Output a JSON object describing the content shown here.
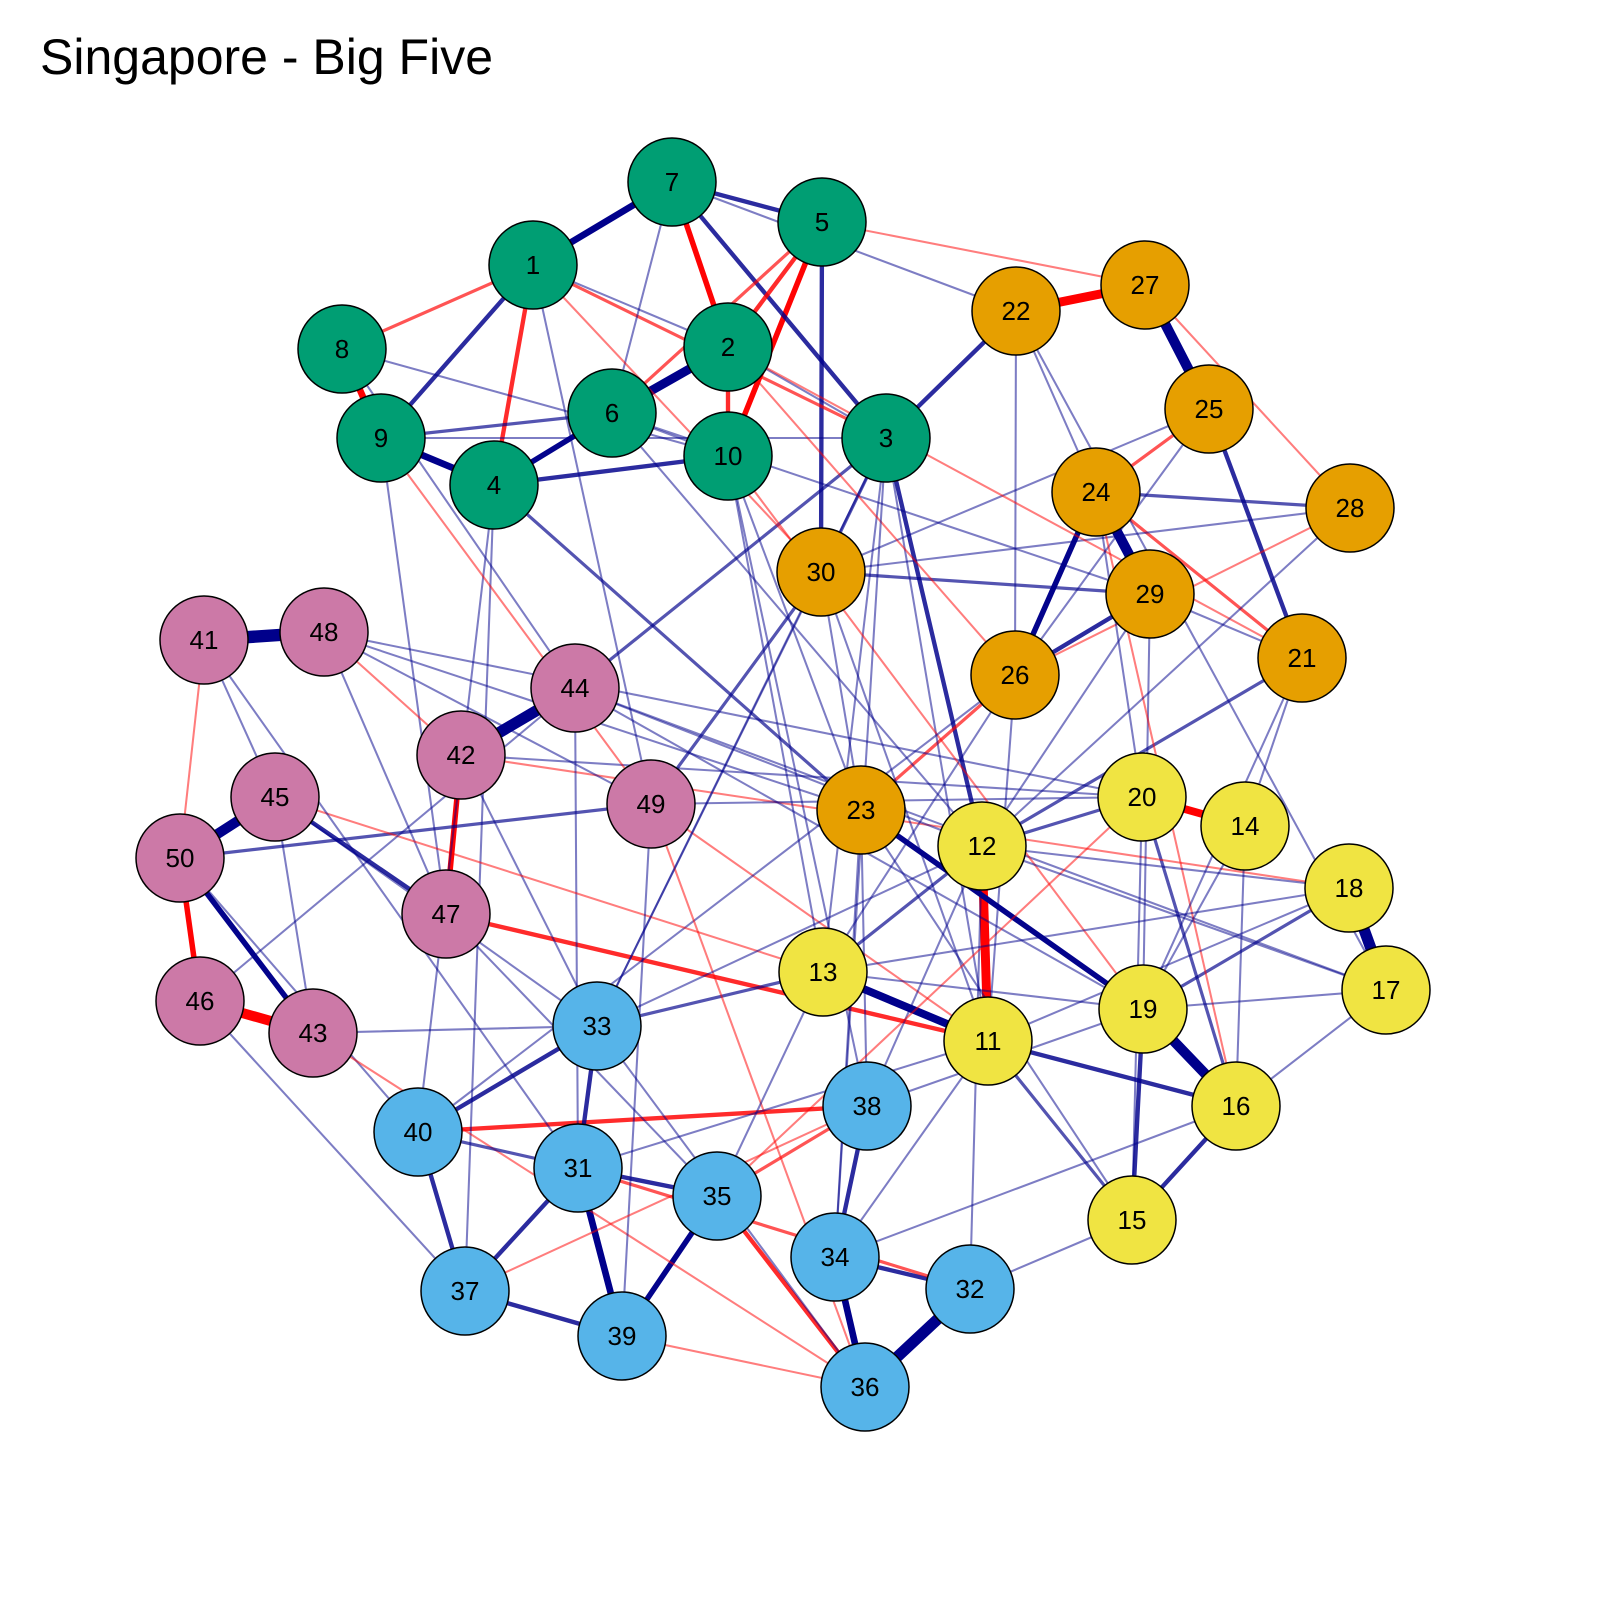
{
  "title": "Singapore - Big Five",
  "colors": {
    "positive": "#00008B",
    "negative": "#FF0000",
    "node_stroke": "#000000",
    "groups": {
      "A": "#009E73",
      "B": "#E69F00",
      "C": "#F0E442",
      "D": "#56B4E9",
      "E": "#CC79A7"
    }
  },
  "nodes": [
    {
      "id": 1,
      "label": "1",
      "group": "A"
    },
    {
      "id": 2,
      "label": "2",
      "group": "A"
    },
    {
      "id": 3,
      "label": "3",
      "group": "A"
    },
    {
      "id": 4,
      "label": "4",
      "group": "A"
    },
    {
      "id": 5,
      "label": "5",
      "group": "A"
    },
    {
      "id": 6,
      "label": "6",
      "group": "A"
    },
    {
      "id": 7,
      "label": "7",
      "group": "A"
    },
    {
      "id": 8,
      "label": "8",
      "group": "A"
    },
    {
      "id": 9,
      "label": "9",
      "group": "A"
    },
    {
      "id": 10,
      "label": "10",
      "group": "A"
    },
    {
      "id": 11,
      "label": "11",
      "group": "C"
    },
    {
      "id": 12,
      "label": "12",
      "group": "C"
    },
    {
      "id": 13,
      "label": "13",
      "group": "C"
    },
    {
      "id": 14,
      "label": "14",
      "group": "C"
    },
    {
      "id": 15,
      "label": "15",
      "group": "C"
    },
    {
      "id": 16,
      "label": "16",
      "group": "C"
    },
    {
      "id": 17,
      "label": "17",
      "group": "C"
    },
    {
      "id": 18,
      "label": "18",
      "group": "C"
    },
    {
      "id": 19,
      "label": "19",
      "group": "C"
    },
    {
      "id": 20,
      "label": "20",
      "group": "C"
    },
    {
      "id": 21,
      "label": "21",
      "group": "B"
    },
    {
      "id": 22,
      "label": "22",
      "group": "B"
    },
    {
      "id": 23,
      "label": "23",
      "group": "B"
    },
    {
      "id": 24,
      "label": "24",
      "group": "B"
    },
    {
      "id": 25,
      "label": "25",
      "group": "B"
    },
    {
      "id": 26,
      "label": "26",
      "group": "B"
    },
    {
      "id": 27,
      "label": "27",
      "group": "B"
    },
    {
      "id": 28,
      "label": "28",
      "group": "B"
    },
    {
      "id": 29,
      "label": "29",
      "group": "B"
    },
    {
      "id": 30,
      "label": "30",
      "group": "B"
    },
    {
      "id": 31,
      "label": "31",
      "group": "D"
    },
    {
      "id": 32,
      "label": "32",
      "group": "D"
    },
    {
      "id": 33,
      "label": "33",
      "group": "D"
    },
    {
      "id": 34,
      "label": "34",
      "group": "D"
    },
    {
      "id": 35,
      "label": "35",
      "group": "D"
    },
    {
      "id": 36,
      "label": "36",
      "group": "D"
    },
    {
      "id": 37,
      "label": "37",
      "group": "D"
    },
    {
      "id": 38,
      "label": "38",
      "group": "D"
    },
    {
      "id": 39,
      "label": "39",
      "group": "D"
    },
    {
      "id": 40,
      "label": "40",
      "group": "D"
    },
    {
      "id": 41,
      "label": "41",
      "group": "E"
    },
    {
      "id": 42,
      "label": "42",
      "group": "E"
    },
    {
      "id": 43,
      "label": "43",
      "group": "E"
    },
    {
      "id": 44,
      "label": "44",
      "group": "E"
    },
    {
      "id": 45,
      "label": "45",
      "group": "E"
    },
    {
      "id": 46,
      "label": "46",
      "group": "E"
    },
    {
      "id": 47,
      "label": "47",
      "group": "E"
    },
    {
      "id": 48,
      "label": "48",
      "group": "E"
    },
    {
      "id": 49,
      "label": "49",
      "group": "E"
    },
    {
      "id": 50,
      "label": "50",
      "group": "E"
    }
  ],
  "edges": [
    {
      "s": 41,
      "t": 48,
      "sign": "pos",
      "w": 10
    },
    {
      "s": 42,
      "t": 44,
      "sign": "pos",
      "w": 9
    },
    {
      "s": 17,
      "t": 18,
      "sign": "pos",
      "w": 9
    },
    {
      "s": 36,
      "t": 32,
      "sign": "pos",
      "w": 9
    },
    {
      "s": 27,
      "t": 25,
      "sign": "pos",
      "w": 8
    },
    {
      "s": 24,
      "t": 29,
      "sign": "pos",
      "w": 8
    },
    {
      "s": 19,
      "t": 16,
      "sign": "pos",
      "w": 8
    },
    {
      "s": 46,
      "t": 43,
      "sign": "neg",
      "w": 8
    },
    {
      "s": 45,
      "t": 50,
      "sign": "pos",
      "w": 8
    },
    {
      "s": 6,
      "t": 2,
      "sign": "pos",
      "w": 7
    },
    {
      "s": 22,
      "t": 27,
      "sign": "neg",
      "w": 7
    },
    {
      "s": 12,
      "t": 11,
      "sign": "neg",
      "w": 7
    },
    {
      "s": 20,
      "t": 14,
      "sign": "neg",
      "w": 6
    },
    {
      "s": 13,
      "t": 11,
      "sign": "pos",
      "w": 6
    },
    {
      "s": 1,
      "t": 7,
      "sign": "pos",
      "w": 5
    },
    {
      "s": 8,
      "t": 9,
      "sign": "neg",
      "w": 5
    },
    {
      "s": 9,
      "t": 4,
      "sign": "pos",
      "w": 5
    },
    {
      "s": 34,
      "t": 36,
      "sign": "pos",
      "w": 5
    },
    {
      "s": 31,
      "t": 39,
      "sign": "pos",
      "w": 5
    },
    {
      "s": 35,
      "t": 39,
      "sign": "pos",
      "w": 4
    },
    {
      "s": 26,
      "t": 24,
      "sign": "pos",
      "w": 4
    },
    {
      "s": 23,
      "t": 19,
      "sign": "pos",
      "w": 4
    },
    {
      "s": 42,
      "t": 47,
      "sign": "neg",
      "w": 4
    },
    {
      "s": 50,
      "t": 46,
      "sign": "neg",
      "w": 4
    },
    {
      "s": 50,
      "t": 43,
      "sign": "pos",
      "w": 4
    },
    {
      "s": 7,
      "t": 2,
      "sign": "neg",
      "w": 4
    },
    {
      "s": 5,
      "t": 10,
      "sign": "neg",
      "w": 4
    },
    {
      "s": 6,
      "t": 4,
      "sign": "pos",
      "w": 4
    },
    {
      "s": 1,
      "t": 4,
      "sign": "neg",
      "w": 3
    },
    {
      "s": 8,
      "t": 1,
      "sign": "neg",
      "w": 2
    },
    {
      "s": 7,
      "t": 3,
      "sign": "pos",
      "w": 3
    },
    {
      "s": 5,
      "t": 30,
      "sign": "pos",
      "w": 3
    },
    {
      "s": 5,
      "t": 2,
      "sign": "neg",
      "w": 3
    },
    {
      "s": 7,
      "t": 5,
      "sign": "pos",
      "w": 3
    },
    {
      "s": 1,
      "t": 9,
      "sign": "pos",
      "w": 3
    },
    {
      "s": 2,
      "t": 10,
      "sign": "neg",
      "w": 3
    },
    {
      "s": 4,
      "t": 10,
      "sign": "pos",
      "w": 3
    },
    {
      "s": 9,
      "t": 6,
      "sign": "pos",
      "w": 2
    },
    {
      "s": 1,
      "t": 3,
      "sign": "neg",
      "w": 2
    },
    {
      "s": 22,
      "t": 3,
      "sign": "pos",
      "w": 3
    },
    {
      "s": 25,
      "t": 21,
      "sign": "pos",
      "w": 3
    },
    {
      "s": 24,
      "t": 28,
      "sign": "pos",
      "w": 2
    },
    {
      "s": 30,
      "t": 29,
      "sign": "pos",
      "w": 2
    },
    {
      "s": 29,
      "t": 26,
      "sign": "pos",
      "w": 3
    },
    {
      "s": 25,
      "t": 24,
      "sign": "neg",
      "w": 2
    },
    {
      "s": 27,
      "t": 28,
      "sign": "neg",
      "w": 1
    },
    {
      "s": 24,
      "t": 21,
      "sign": "neg",
      "w": 2
    },
    {
      "s": 3,
      "t": 12,
      "sign": "pos",
      "w": 3
    },
    {
      "s": 3,
      "t": 30,
      "sign": "pos",
      "w": 2
    },
    {
      "s": 44,
      "t": 3,
      "sign": "pos",
      "w": 2
    },
    {
      "s": 30,
      "t": 49,
      "sign": "pos",
      "w": 2
    },
    {
      "s": 45,
      "t": 47,
      "sign": "pos",
      "w": 3
    },
    {
      "s": 43,
      "t": 45,
      "sign": "pos",
      "w": 1
    },
    {
      "s": 50,
      "t": 49,
      "sign": "pos",
      "w": 2
    },
    {
      "s": 47,
      "t": 11,
      "sign": "neg",
      "w": 3
    },
    {
      "s": 40,
      "t": 38,
      "sign": "neg",
      "w": 3
    },
    {
      "s": 40,
      "t": 33,
      "sign": "pos",
      "w": 3
    },
    {
      "s": 40,
      "t": 37,
      "sign": "pos",
      "w": 3
    },
    {
      "s": 31,
      "t": 37,
      "sign": "pos",
      "w": 3
    },
    {
      "s": 31,
      "t": 35,
      "sign": "pos",
      "w": 3
    },
    {
      "s": 33,
      "t": 31,
      "sign": "pos",
      "w": 3
    },
    {
      "s": 37,
      "t": 39,
      "sign": "pos",
      "w": 3
    },
    {
      "s": 38,
      "t": 34,
      "sign": "pos",
      "w": 3
    },
    {
      "s": 34,
      "t": 32,
      "sign": "pos",
      "w": 3
    },
    {
      "s": 35,
      "t": 36,
      "sign": "neg",
      "w": 3
    },
    {
      "s": 31,
      "t": 32,
      "sign": "neg",
      "w": 2
    },
    {
      "s": 38,
      "t": 35,
      "sign": "neg",
      "w": 2
    },
    {
      "s": 13,
      "t": 33,
      "sign": "pos",
      "w": 2
    },
    {
      "s": 19,
      "t": 15,
      "sign": "pos",
      "w": 3
    },
    {
      "s": 16,
      "t": 15,
      "sign": "pos",
      "w": 3
    },
    {
      "s": 11,
      "t": 16,
      "sign": "pos",
      "w": 3
    },
    {
      "s": 20,
      "t": 12,
      "sign": "pos",
      "w": 2
    },
    {
      "s": 18,
      "t": 19,
      "sign": "pos",
      "w": 2
    },
    {
      "s": 20,
      "t": 16,
      "sign": "pos",
      "w": 2
    },
    {
      "s": 11,
      "t": 15,
      "sign": "pos",
      "w": 2
    },
    {
      "s": 13,
      "t": 12,
      "sign": "pos",
      "w": 2
    },
    {
      "s": 23,
      "t": 26,
      "sign": "neg",
      "w": 2
    },
    {
      "s": 21,
      "t": 12,
      "sign": "pos",
      "w": 2
    },
    {
      "s": 30,
      "t": 23,
      "sign": "pos",
      "w": 1
    },
    {
      "s": 49,
      "t": 11,
      "sign": "neg",
      "w": 1
    },
    {
      "s": 44,
      "t": 17,
      "sign": "pos",
      "w": 1
    },
    {
      "s": 48,
      "t": 20,
      "sign": "pos",
      "w": 1
    },
    {
      "s": 41,
      "t": 45,
      "sign": "pos",
      "w": 1
    },
    {
      "s": 48,
      "t": 47,
      "sign": "pos",
      "w": 1
    },
    {
      "s": 42,
      "t": 18,
      "sign": "neg",
      "w": 1
    },
    {
      "s": 49,
      "t": 20,
      "sign": "pos",
      "w": 1
    },
    {
      "s": 9,
      "t": 3,
      "sign": "pos",
      "w": 1
    },
    {
      "s": 8,
      "t": 10,
      "sign": "pos",
      "w": 1
    },
    {
      "s": 4,
      "t": 23,
      "sign": "pos",
      "w": 2
    },
    {
      "s": 2,
      "t": 3,
      "sign": "pos",
      "w": 1
    },
    {
      "s": 6,
      "t": 10,
      "sign": "pos",
      "w": 1
    },
    {
      "s": 1,
      "t": 2,
      "sign": "pos",
      "w": 1
    },
    {
      "s": 5,
      "t": 6,
      "sign": "neg",
      "w": 2
    },
    {
      "s": 7,
      "t": 6,
      "sign": "pos",
      "w": 1
    },
    {
      "s": 5,
      "t": 27,
      "sign": "neg",
      "w": 1
    },
    {
      "s": 22,
      "t": 24,
      "sign": "pos",
      "w": 1
    },
    {
      "s": 22,
      "t": 26,
      "sign": "pos",
      "w": 1
    },
    {
      "s": 25,
      "t": 30,
      "sign": "pos",
      "w": 1
    },
    {
      "s": 25,
      "t": 26,
      "sign": "pos",
      "w": 1
    },
    {
      "s": 28,
      "t": 30,
      "sign": "pos",
      "w": 1
    },
    {
      "s": 28,
      "t": 26,
      "sign": "neg",
      "w": 1
    },
    {
      "s": 21,
      "t": 29,
      "sign": "pos",
      "w": 1
    },
    {
      "s": 3,
      "t": 11,
      "sign": "pos",
      "w": 1
    },
    {
      "s": 3,
      "t": 13,
      "sign": "pos",
      "w": 1
    },
    {
      "s": 10,
      "t": 38,
      "sign": "pos",
      "w": 1
    },
    {
      "s": 10,
      "t": 19,
      "sign": "neg",
      "w": 1
    },
    {
      "s": 6,
      "t": 12,
      "sign": "pos",
      "w": 1
    },
    {
      "s": 2,
      "t": 21,
      "sign": "neg",
      "w": 1
    },
    {
      "s": 4,
      "t": 37,
      "sign": "pos",
      "w": 1
    },
    {
      "s": 8,
      "t": 44,
      "sign": "pos",
      "w": 1
    },
    {
      "s": 9,
      "t": 47,
      "sign": "pos",
      "w": 1
    },
    {
      "s": 1,
      "t": 49,
      "sign": "pos",
      "w": 1
    },
    {
      "s": 30,
      "t": 33,
      "sign": "pos",
      "w": 1
    },
    {
      "s": 30,
      "t": 11,
      "sign": "pos",
      "w": 1
    },
    {
      "s": 26,
      "t": 13,
      "sign": "pos",
      "w": 1
    },
    {
      "s": 26,
      "t": 40,
      "sign": "pos",
      "w": 1
    },
    {
      "s": 29,
      "t": 19,
      "sign": "pos",
      "w": 1
    },
    {
      "s": 24,
      "t": 20,
      "sign": "pos",
      "w": 1
    },
    {
      "s": 24,
      "t": 16,
      "sign": "neg",
      "w": 1
    },
    {
      "s": 21,
      "t": 14,
      "sign": "pos",
      "w": 1
    },
    {
      "s": 28,
      "t": 12,
      "sign": "pos",
      "w": 1
    },
    {
      "s": 22,
      "t": 17,
      "sign": "pos",
      "w": 1
    },
    {
      "s": 23,
      "t": 38,
      "sign": "pos",
      "w": 1
    },
    {
      "s": 23,
      "t": 34,
      "sign": "pos",
      "w": 1
    },
    {
      "s": 23,
      "t": 15,
      "sign": "pos",
      "w": 1
    },
    {
      "s": 44,
      "t": 12,
      "sign": "pos",
      "w": 1
    },
    {
      "s": 44,
      "t": 19,
      "sign": "pos",
      "w": 1
    },
    {
      "s": 44,
      "t": 31,
      "sign": "pos",
      "w": 1
    },
    {
      "s": 42,
      "t": 33,
      "sign": "pos",
      "w": 1
    },
    {
      "s": 42,
      "t": 20,
      "sign": "pos",
      "w": 1
    },
    {
      "s": 45,
      "t": 33,
      "sign": "pos",
      "w": 1
    },
    {
      "s": 45,
      "t": 13,
      "sign": "neg",
      "w": 1
    },
    {
      "s": 41,
      "t": 31,
      "sign": "pos",
      "w": 1
    },
    {
      "s": 41,
      "t": 50,
      "sign": "neg",
      "w": 1
    },
    {
      "s": 48,
      "t": 42,
      "sign": "neg",
      "w": 1
    },
    {
      "s": 48,
      "t": 49,
      "sign": "pos",
      "w": 1
    },
    {
      "s": 48,
      "t": 23,
      "sign": "pos",
      "w": 1
    },
    {
      "s": 50,
      "t": 40,
      "sign": "pos",
      "w": 1
    },
    {
      "s": 46,
      "t": 44,
      "sign": "pos",
      "w": 1
    },
    {
      "s": 46,
      "t": 37,
      "sign": "pos",
      "w": 1
    },
    {
      "s": 43,
      "t": 33,
      "sign": "pos",
      "w": 1
    },
    {
      "s": 43,
      "t": 36,
      "sign": "neg",
      "w": 1
    },
    {
      "s": 47,
      "t": 35,
      "sign": "pos",
      "w": 1
    },
    {
      "s": 49,
      "t": 39,
      "sign": "pos",
      "w": 1
    },
    {
      "s": 49,
      "t": 36,
      "sign": "neg",
      "w": 1
    },
    {
      "s": 33,
      "t": 12,
      "sign": "pos",
      "w": 1
    },
    {
      "s": 33,
      "t": 36,
      "sign": "pos",
      "w": 1
    },
    {
      "s": 31,
      "t": 11,
      "sign": "pos",
      "w": 1
    },
    {
      "s": 38,
      "t": 19,
      "sign": "pos",
      "w": 1
    },
    {
      "s": 38,
      "t": 12,
      "sign": "pos",
      "w": 1
    },
    {
      "s": 34,
      "t": 11,
      "sign": "pos",
      "w": 1
    },
    {
      "s": 34,
      "t": 16,
      "sign": "pos",
      "w": 1
    },
    {
      "s": 32,
      "t": 15,
      "sign": "pos",
      "w": 1
    },
    {
      "s": 32,
      "t": 12,
      "sign": "pos",
      "w": 1
    },
    {
      "s": 35,
      "t": 13,
      "sign": "pos",
      "w": 1
    },
    {
      "s": 35,
      "t": 20,
      "sign": "neg",
      "w": 1
    },
    {
      "s": 37,
      "t": 38,
      "sign": "neg",
      "w": 1
    },
    {
      "s": 39,
      "t": 36,
      "sign": "neg",
      "w": 1
    },
    {
      "s": 40,
      "t": 31,
      "sign": "pos",
      "w": 2
    },
    {
      "s": 13,
      "t": 19,
      "sign": "pos",
      "w": 1
    },
    {
      "s": 13,
      "t": 18,
      "sign": "pos",
      "w": 1
    },
    {
      "s": 12,
      "t": 18,
      "sign": "pos",
      "w": 1
    },
    {
      "s": 12,
      "t": 17,
      "sign": "pos",
      "w": 1
    },
    {
      "s": 11,
      "t": 18,
      "sign": "pos",
      "w": 1
    },
    {
      "s": 20,
      "t": 15,
      "sign": "pos",
      "w": 1
    },
    {
      "s": 14,
      "t": 16,
      "sign": "pos",
      "w": 1
    },
    {
      "s": 17,
      "t": 16,
      "sign": "pos",
      "w": 1
    },
    {
      "s": 17,
      "t": 19,
      "sign": "pos",
      "w": 1
    },
    {
      "s": 14,
      "t": 19,
      "sign": "pos",
      "w": 1
    },
    {
      "s": 21,
      "t": 19,
      "sign": "pos",
      "w": 1
    },
    {
      "s": 29,
      "t": 12,
      "sign": "pos",
      "w": 1
    },
    {
      "s": 26,
      "t": 11,
      "sign": "pos",
      "w": 1
    },
    {
      "s": 10,
      "t": 23,
      "sign": "pos",
      "w": 1
    },
    {
      "s": 10,
      "t": 13,
      "sign": "pos",
      "w": 1
    },
    {
      "s": 6,
      "t": 29,
      "sign": "pos",
      "w": 1
    },
    {
      "s": 2,
      "t": 26,
      "sign": "neg",
      "w": 1
    },
    {
      "s": 7,
      "t": 22,
      "sign": "pos",
      "w": 1
    },
    {
      "s": 1,
      "t": 30,
      "sign": "neg",
      "w": 1
    },
    {
      "s": 4,
      "t": 40,
      "sign": "pos",
      "w": 1
    },
    {
      "s": 9,
      "t": 49,
      "sign": "neg",
      "w": 1
    },
    {
      "s": 3,
      "t": 33,
      "sign": "pos",
      "w": 1
    },
    {
      "s": 3,
      "t": 34,
      "sign": "pos",
      "w": 1
    }
  ]
}
